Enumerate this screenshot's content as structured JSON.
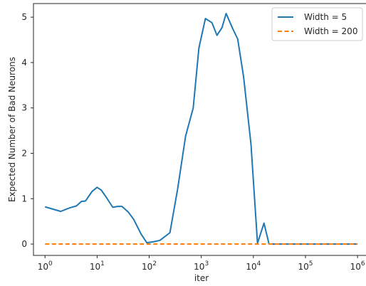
{
  "chart_data": {
    "type": "line",
    "title": "",
    "xlabel": "iter",
    "ylabel": "Expected Number of Bad Neurons",
    "xscale": "log",
    "xlim": [
      0.6,
      1500000
    ],
    "ylim": [
      -0.25,
      5.3
    ],
    "grid": false,
    "legend_position": "top-right",
    "x_ticks": [
      {
        "value": 1,
        "base": "10",
        "exp": "0"
      },
      {
        "value": 10,
        "base": "10",
        "exp": "1"
      },
      {
        "value": 100,
        "base": "10",
        "exp": "2"
      },
      {
        "value": 1000,
        "base": "10",
        "exp": "3"
      },
      {
        "value": 10000,
        "base": "10",
        "exp": "4"
      },
      {
        "value": 100000,
        "base": "10",
        "exp": "5"
      },
      {
        "value": 1000000,
        "base": "10",
        "exp": "6"
      }
    ],
    "y_ticks": [
      0,
      1,
      2,
      3,
      4,
      5
    ],
    "series": [
      {
        "name": "Width = 5",
        "color": "#1f77b4",
        "linestyle": "solid",
        "x": [
          1,
          2,
          3,
          4,
          5,
          6,
          8,
          10,
          12,
          15,
          20,
          25,
          30,
          40,
          50,
          70,
          90,
          120,
          160,
          250,
          350,
          500,
          700,
          900,
          1200,
          1600,
          2000,
          2500,
          3000,
          4000,
          5000,
          6500,
          9000,
          12000,
          16000,
          20000,
          26000,
          34000,
          50000,
          100000,
          300000,
          1000000
        ],
        "y": [
          0.82,
          0.72,
          0.8,
          0.84,
          0.94,
          0.95,
          1.16,
          1.25,
          1.19,
          1.03,
          0.81,
          0.83,
          0.83,
          0.7,
          0.55,
          0.22,
          0.03,
          0.05,
          0.08,
          0.25,
          1.2,
          2.38,
          3.0,
          4.32,
          4.97,
          4.88,
          4.6,
          4.77,
          5.08,
          4.75,
          4.52,
          3.68,
          2.2,
          0.02,
          0.46,
          0.0,
          0.0,
          0.0,
          0.0,
          0.0,
          0.0,
          0.0
        ]
      },
      {
        "name": "Width = 200",
        "color": "#ff7f0e",
        "linestyle": "dashed",
        "x": [
          1,
          1000000
        ],
        "y": [
          0,
          0
        ]
      }
    ]
  }
}
